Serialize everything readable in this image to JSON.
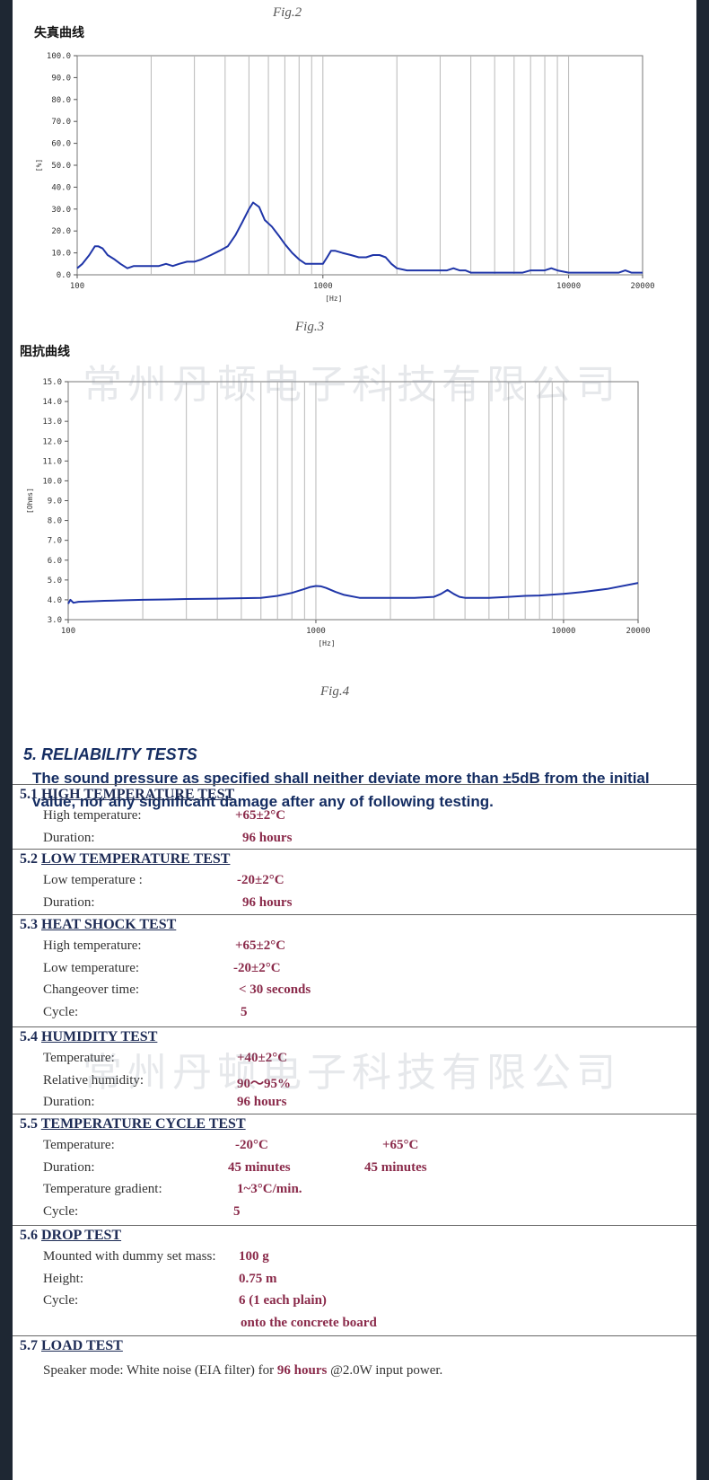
{
  "fig2": "Fig.2",
  "fig3": "Fig.3",
  "fig4": "Fig.4",
  "watermark": "常州丹顿电子科技有限公司",
  "colors": {
    "curve": "#1f35a8",
    "grid": "#b8b8b8",
    "section_head": "#1d2b55",
    "value": "#8a2a4a"
  },
  "chart_data": [
    {
      "type": "line",
      "title": "失真曲线",
      "xlabel": "[Hz]",
      "ylabel": "[%]",
      "x_scale": "log",
      "xlim": [
        100,
        20000
      ],
      "ylim": [
        0,
        100
      ],
      "y_ticks": [
        "0.0",
        "10.0",
        "20.0",
        "30.0",
        "40.0",
        "50.0",
        "60.0",
        "70.0",
        "80.0",
        "90.0",
        "100.0"
      ],
      "x_ticks": [
        "100",
        "1000",
        "10000",
        "20000"
      ],
      "grid": true,
      "series": [
        {
          "x": [
            100,
            105,
            112,
            118,
            122,
            127,
            133,
            142,
            150,
            160,
            170,
            180,
            190,
            200,
            215,
            230,
            245,
            260,
            280,
            300,
            320,
            350,
            380,
            410,
            440,
            470,
            500,
            520,
            550,
            580,
            620,
            660,
            700,
            750,
            800,
            850,
            900,
            950,
            1000,
            1040,
            1080,
            1120,
            1200,
            1300,
            1400,
            1500,
            1600,
            1700,
            1800,
            1900,
            2000,
            2200,
            2500,
            2800,
            3000,
            3200,
            3400,
            3600,
            3800,
            4000,
            4500,
            5000,
            5500,
            6000,
            6500,
            7000,
            7500,
            8000,
            8500,
            9000,
            10000,
            11000,
            12000,
            13000,
            14000,
            15000,
            16000,
            17000,
            18000,
            19000,
            20000
          ],
          "y": [
            3,
            5,
            9,
            13,
            13,
            12,
            9,
            7,
            5,
            3,
            4,
            4,
            4,
            4,
            4,
            5,
            4,
            5,
            6,
            6,
            7,
            9,
            11,
            13,
            18,
            24,
            30,
            33,
            31,
            25,
            22,
            18,
            14,
            10,
            7,
            5,
            5,
            5,
            5,
            8,
            11,
            11,
            10,
            9,
            8,
            8,
            9,
            9,
            8,
            5,
            3,
            2,
            2,
            2,
            2,
            2,
            3,
            2,
            2,
            1,
            1,
            1,
            1,
            1,
            1,
            2,
            2,
            2,
            3,
            2,
            1,
            1,
            1,
            1,
            1,
            1,
            1,
            2,
            1,
            1,
            1
          ]
        }
      ]
    },
    {
      "type": "line",
      "title": "阻抗曲线",
      "xlabel": "[Hz]",
      "ylabel": "[Ohms]",
      "x_scale": "log",
      "xlim": [
        100,
        20000
      ],
      "ylim": [
        3,
        15
      ],
      "y_ticks": [
        "3.0",
        "4.0",
        "5.0",
        "6.0",
        "7.0",
        "8.0",
        "9.0",
        "10.0",
        "11.0",
        "12.0",
        "13.0",
        "14.0",
        "15.0"
      ],
      "x_ticks": [
        "100",
        "1000",
        "10000",
        "20000"
      ],
      "grid": true,
      "series": [
        {
          "x": [
            100,
            102,
            105,
            110,
            120,
            140,
            170,
            200,
            250,
            300,
            400,
            500,
            600,
            700,
            800,
            900,
            950,
            1000,
            1050,
            1100,
            1200,
            1300,
            1500,
            2000,
            2500,
            3000,
            3200,
            3400,
            3600,
            3800,
            4000,
            5000,
            6000,
            7000,
            8000,
            10000,
            12000,
            15000,
            20000
          ],
          "y": [
            3.8,
            4.0,
            3.85,
            3.9,
            3.92,
            3.95,
            3.98,
            4.0,
            4.02,
            4.04,
            4.06,
            4.08,
            4.1,
            4.2,
            4.35,
            4.55,
            4.65,
            4.7,
            4.68,
            4.6,
            4.4,
            4.25,
            4.1,
            4.1,
            4.1,
            4.15,
            4.3,
            4.5,
            4.3,
            4.15,
            4.1,
            4.1,
            4.15,
            4.2,
            4.22,
            4.3,
            4.4,
            4.55,
            4.85
          ]
        }
      ]
    }
  ],
  "reliability": {
    "title": "5. RELIABILITY TESTS",
    "intro": "The sound pressure as specified shall neither deviate more than ±5dB from the initial value, nor any significant damage after any of following testing.",
    "sections": [
      {
        "num": "5.1",
        "title": "HIGH TEMPERATURE TEST",
        "rows": [
          {
            "label": "High temperature:",
            "value": "+65±2°C"
          },
          {
            "label": "Duration:",
            "value": "96 hours"
          }
        ]
      },
      {
        "num": "5.2",
        "title": "LOW TEMPERATURE TEST",
        "rows": [
          {
            "label": "Low temperature :",
            "value": "-20±2°C"
          },
          {
            "label": "Duration:",
            "value": "96 hours"
          }
        ]
      },
      {
        "num": "5.3",
        "title": "HEAT SHOCK TEST",
        "rows": [
          {
            "label": "High temperature:",
            "value": "+65±2°C"
          },
          {
            "label": "Low temperature:",
            "value": "-20±2°C"
          },
          {
            "label": "Changeover time:",
            "value": "< 30 seconds"
          },
          {
            "label": "Cycle:",
            "value": "5"
          }
        ]
      },
      {
        "num": "5.4",
        "title": "HUMIDITY TEST",
        "rows": [
          {
            "label": "Temperature:",
            "value": "+40±2°C"
          },
          {
            "label": "Relative humidity:",
            "value": "90～95%"
          },
          {
            "label": "Duration:",
            "value": "96 hours"
          }
        ]
      },
      {
        "num": "5.5",
        "title": "TEMPERATURE CYCLE TEST",
        "rows": [
          {
            "label": "Temperature:",
            "value": "-20°C",
            "value2": "+65°C"
          },
          {
            "label": "Duration:",
            "value": "45 minutes",
            "value2": "45 minutes"
          },
          {
            "label": "Temperature gradient:",
            "value": "1~3°C/min."
          },
          {
            "label": "Cycle:",
            "value": "5"
          }
        ]
      },
      {
        "num": "5.6",
        "title": "DROP TEST",
        "rows": [
          {
            "label": "Mounted with dummy set mass:",
            "value": "100 g"
          },
          {
            "label": "Height:",
            "value": "0.75 m"
          },
          {
            "label": "Cycle:",
            "value": "6 (1 each plain)"
          },
          {
            "label": "",
            "value": "onto the concrete board"
          }
        ]
      },
      {
        "num": "5.7",
        "title": "LOAD TEST",
        "load": {
          "pre": "Speaker mode: White noise (EIA filter) for ",
          "bold": "96 hours",
          "post": " @2.0W input power."
        }
      }
    ]
  }
}
